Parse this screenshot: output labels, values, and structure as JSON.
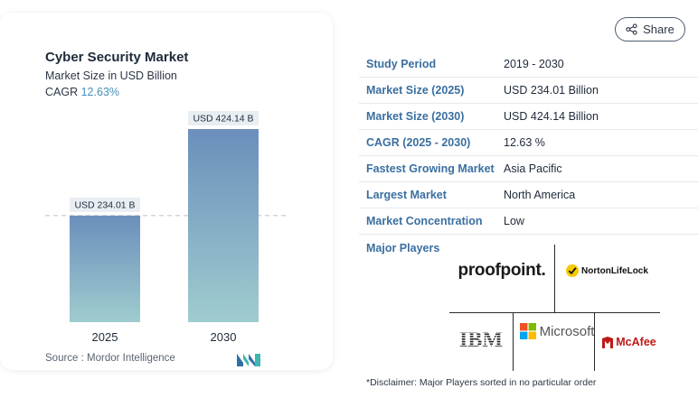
{
  "card": {
    "title": "Cyber Security Market",
    "subtitle": "Market Size in USD Billion",
    "cagr_label": "CAGR",
    "cagr_value": "12.63%",
    "source": "Source : Mordor Intelligence",
    "logo_icon": "mordor-intelligence-logo"
  },
  "chart_data": {
    "type": "bar",
    "categories": [
      "2025",
      "2030"
    ],
    "values": [
      234.01,
      424.14
    ],
    "data_labels": [
      "USD 234.01 B",
      "USD 424.14 B"
    ],
    "title": "Cyber Security Market",
    "ylim": [
      0,
      424.14
    ],
    "grid": false,
    "reference_line": {
      "value": 234.01,
      "style": "dashed"
    },
    "colors": {
      "bar_top": "#6b8fbb",
      "bar_bottom": "#9fcccf",
      "label_bg": "#e9eef3"
    }
  },
  "share": {
    "label": "Share",
    "icon": "share-icon"
  },
  "info": {
    "rows": [
      {
        "label": "Study Period",
        "value": "2019 - 2030"
      },
      {
        "label": "Market Size (2025)",
        "value": "USD 234.01 Billion"
      },
      {
        "label": "Market Size (2030)",
        "value": "USD 424.14 Billion"
      },
      {
        "label": "CAGR (2025 - 2030)",
        "value": "12.63 %"
      },
      {
        "label": "Fastest Growing Market",
        "value": "Asia Pacific"
      },
      {
        "label": "Largest Market",
        "value": "North America"
      },
      {
        "label": "Market Concentration",
        "value": "Low"
      }
    ]
  },
  "players": {
    "label": "Major Players",
    "proofpoint": "proofpoint",
    "proofpoint_dot": ".",
    "norton": "NortonLifeLock",
    "ibm": "IBM",
    "microsoft": "Microsoft",
    "mcafee": "McAfee"
  },
  "disclaimer": "*Disclaimer: Major Players sorted in no particular order",
  "colors": {
    "accent": "#3a6fa0",
    "cagr": "#4a8fb9",
    "mcafee_red": "#c01818"
  }
}
